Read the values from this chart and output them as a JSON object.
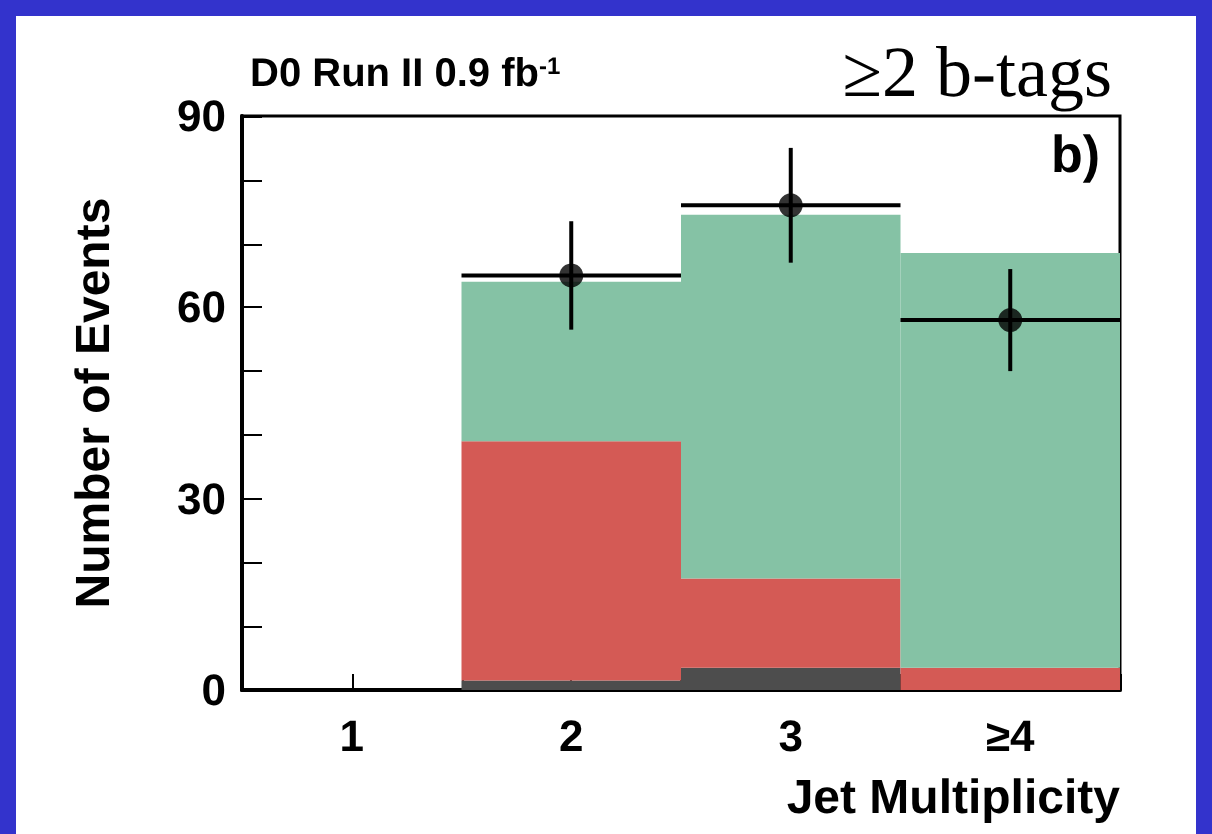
{
  "chart_data": {
    "type": "bar",
    "title": "D0 Run II 0.9 fb$^{-1}$",
    "xlabel": "Jet Multiplicity",
    "ylabel": "Number of Events",
    "annotations": [
      "≥2 b-tags",
      "b)"
    ],
    "x": [
      1,
      2,
      3,
      4
    ],
    "stacked": true,
    "series": [
      {
        "color": "#4d4d4d",
        "values": [
          0,
          1.5,
          3.5,
          0
        ]
      },
      {
        "color": "#d45a55",
        "values": [
          0,
          37.5,
          14,
          3.5
        ]
      },
      {
        "color": "#85c2a5",
        "values": [
          0,
          25,
          57,
          65
        ]
      },
      {
        "type": "scatter",
        "color": "#000000",
        "x": [
          2,
          3,
          4
        ],
        "values": [
          65,
          76,
          58
        ],
        "errors": [
          [
            56.5,
            73.5
          ],
          [
            67,
            85
          ],
          [
            50,
            66
          ]
        ],
        "xerrors": [
          0.5,
          0.5,
          0.5
        ]
      }
    ],
    "xlim": [
      0.5,
      4.5
    ],
    "xticks": [
      1,
      {
        "value": 1.5,
        "label": null
      },
      2,
      {
        "value": 2.5,
        "label": null
      },
      3,
      {
        "value": 3.5,
        "label": null
      },
      {
        "value": 4,
        "label": "≥4"
      }
    ],
    "ylim": [
      0,
      90
    ],
    "yticks": [
      0,
      {
        "value": 10,
        "label": null
      },
      {
        "value": 20,
        "label": null
      },
      30,
      {
        "value": 40,
        "label": null
      },
      {
        "value": 50,
        "label": null
      },
      60,
      {
        "value": 70,
        "label": null
      },
      {
        "value": 80,
        "label": null
      },
      90
    ],
    "grid": false,
    "marker": "circle"
  }
}
